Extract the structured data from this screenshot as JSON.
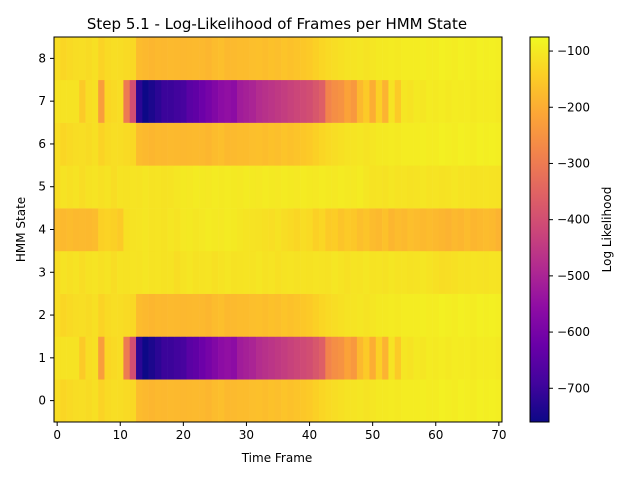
{
  "chart_data": {
    "type": "heatmap",
    "title": "Step 5.1 - Log-Likelihood of Frames per HMM State",
    "xlabel": "Time Frame",
    "ylabel": "HMM State",
    "colorbar_label": "Log Likelihood",
    "colormap": "plasma",
    "x_range": [
      0,
      70
    ],
    "y_states": [
      0,
      1,
      2,
      3,
      4,
      5,
      6,
      7,
      8
    ],
    "x_ticks": [
      0,
      10,
      20,
      30,
      40,
      50,
      60,
      70
    ],
    "y_ticks": [
      0,
      1,
      2,
      3,
      4,
      5,
      6,
      7,
      8
    ],
    "colorbar_ticks": [
      -100,
      -200,
      -300,
      -400,
      -500,
      -600,
      -700
    ],
    "color_range": [
      -760,
      -75
    ],
    "rows": [
      {
        "state": 0,
        "values": [
          -120,
          -130,
          -125,
          -120,
          -118,
          -122,
          -115,
          -135,
          -125,
          -118,
          -120,
          -125,
          -128,
          -175,
          -180,
          -185,
          -180,
          -182,
          -178,
          -180,
          -182,
          -180,
          -178,
          -180,
          -185,
          -175,
          -170,
          -180,
          -178,
          -175,
          -175,
          -170,
          -168,
          -172,
          -165,
          -170,
          -160,
          -165,
          -160,
          -155,
          -150,
          -140,
          -130,
          -125,
          -120,
          -115,
          -110,
          -108,
          -105,
          -110,
          -105,
          -100,
          -100,
          -98,
          -100,
          -95,
          -95,
          -95,
          -92,
          -95,
          -95,
          -90,
          -92,
          -95,
          -90,
          -92,
          -95,
          -90,
          -92,
          -90,
          -92
        ]
      },
      {
        "state": 1,
        "values": [
          -110,
          -110,
          -110,
          -110,
          -150,
          -120,
          -115,
          -230,
          -130,
          -125,
          -120,
          -300,
          -400,
          -720,
          -760,
          -740,
          -720,
          -700,
          -700,
          -690,
          -680,
          -650,
          -640,
          -620,
          -600,
          -580,
          -560,
          -550,
          -560,
          -520,
          -510,
          -500,
          -480,
          -470,
          -460,
          -450,
          -440,
          -430,
          -420,
          -410,
          -400,
          -380,
          -360,
          -280,
          -260,
          -250,
          -220,
          -240,
          -180,
          -150,
          -200,
          -140,
          -190,
          -110,
          -150,
          -105,
          -110,
          -100,
          -105,
          -98,
          -100,
          -95,
          -100,
          -95,
          -98,
          -95,
          -100,
          -95,
          -98,
          -95,
          -100
        ]
      },
      {
        "state": 2,
        "values": [
          -120,
          -130,
          -125,
          -120,
          -118,
          -122,
          -115,
          -135,
          -125,
          -118,
          -120,
          -125,
          -128,
          -175,
          -180,
          -185,
          -180,
          -182,
          -178,
          -180,
          -182,
          -180,
          -178,
          -180,
          -185,
          -175,
          -170,
          -180,
          -178,
          -175,
          -175,
          -170,
          -168,
          -172,
          -165,
          -170,
          -160,
          -165,
          -160,
          -155,
          -150,
          -140,
          -130,
          -125,
          -120,
          -115,
          -110,
          -108,
          -105,
          -110,
          -105,
          -100,
          -100,
          -98,
          -100,
          -95,
          -95,
          -95,
          -92,
          -95,
          -95,
          -90,
          -92,
          -95,
          -90,
          -92,
          -95,
          -90,
          -92,
          -90,
          -92
        ]
      },
      {
        "state": 3,
        "values": [
          -120,
          -110,
          -115,
          -110,
          -120,
          -112,
          -108,
          -115,
          -110,
          -120,
          -110,
          -112,
          -108,
          -110,
          -105,
          -110,
          -108,
          -112,
          -110,
          -120,
          -110,
          -105,
          -112,
          -110,
          -108,
          -115,
          -110,
          -105,
          -112,
          -110,
          -108,
          -110,
          -105,
          -112,
          -108,
          -115,
          -110,
          -108,
          -112,
          -110,
          -112,
          -108,
          -110,
          -112,
          -105,
          -110,
          -115,
          -108,
          -110,
          -105,
          -110,
          -108,
          -112,
          -105,
          -110,
          -108,
          -112,
          -110,
          -105,
          -110,
          -115,
          -120,
          -118,
          -115,
          -110,
          -112,
          -108,
          -110,
          -112,
          -108,
          -110
        ]
      },
      {
        "state": 4,
        "values": [
          -175,
          -180,
          -175,
          -180,
          -178,
          -180,
          -175,
          -140,
          -135,
          -140,
          -150,
          -115,
          -110,
          -108,
          -105,
          -110,
          -108,
          -112,
          -105,
          -110,
          -102,
          -100,
          -105,
          -102,
          -98,
          -100,
          -102,
          -98,
          -100,
          -105,
          -108,
          -110,
          -112,
          -115,
          -118,
          -112,
          -120,
          -125,
          -130,
          -120,
          -125,
          -140,
          -130,
          -150,
          -145,
          -160,
          -150,
          -155,
          -170,
          -160,
          -175,
          -180,
          -165,
          -185,
          -175,
          -180,
          -170,
          -175,
          -180,
          -175,
          -180,
          -185,
          -190,
          -180,
          -185,
          -175,
          -185,
          -180,
          -175,
          -180,
          -190
        ]
      },
      {
        "state": 5,
        "values": [
          -120,
          -110,
          -115,
          -110,
          -120,
          -112,
          -108,
          -115,
          -110,
          -120,
          -110,
          -112,
          -108,
          -110,
          -105,
          -110,
          -108,
          -112,
          -110,
          -105,
          -100,
          -102,
          -98,
          -100,
          -102,
          -98,
          -100,
          -98,
          -100,
          -102,
          -98,
          -100,
          -102,
          -98,
          -100,
          -102,
          -98,
          -100,
          -102,
          -98,
          -100,
          -102,
          -98,
          -100,
          -102,
          -98,
          -100,
          -102,
          -98,
          -105,
          -110,
          -108,
          -112,
          -105,
          -110,
          -108,
          -112,
          -110,
          -105,
          -110,
          -108,
          -112,
          -110,
          -105,
          -110,
          -108,
          -112,
          -110,
          -108,
          -110,
          -112
        ]
      },
      {
        "state": 6,
        "values": [
          -120,
          -130,
          -125,
          -120,
          -118,
          -122,
          -115,
          -135,
          -125,
          -118,
          -120,
          -125,
          -128,
          -175,
          -180,
          -185,
          -180,
          -182,
          -178,
          -180,
          -182,
          -180,
          -178,
          -180,
          -185,
          -175,
          -170,
          -180,
          -178,
          -175,
          -175,
          -170,
          -168,
          -172,
          -165,
          -170,
          -160,
          -165,
          -160,
          -155,
          -150,
          -140,
          -130,
          -125,
          -120,
          -115,
          -110,
          -108,
          -105,
          -110,
          -105,
          -100,
          -100,
          -98,
          -100,
          -95,
          -95,
          -95,
          -92,
          -95,
          -95,
          -90,
          -92,
          -95,
          -90,
          -92,
          -95,
          -90,
          -92,
          -90,
          -92
        ]
      },
      {
        "state": 7,
        "values": [
          -110,
          -110,
          -110,
          -110,
          -150,
          -120,
          -115,
          -230,
          -130,
          -125,
          -120,
          -300,
          -400,
          -720,
          -760,
          -740,
          -720,
          -700,
          -700,
          -690,
          -680,
          -650,
          -640,
          -620,
          -600,
          -580,
          -560,
          -550,
          -560,
          -520,
          -510,
          -500,
          -480,
          -470,
          -460,
          -450,
          -440,
          -430,
          -420,
          -410,
          -400,
          -380,
          -360,
          -280,
          -260,
          -250,
          -220,
          -240,
          -180,
          -150,
          -200,
          -140,
          -190,
          -110,
          -150,
          -105,
          -110,
          -100,
          -105,
          -98,
          -100,
          -95,
          -100,
          -95,
          -98,
          -95,
          -100,
          -95,
          -98,
          -95,
          -100
        ]
      },
      {
        "state": 8,
        "values": [
          -120,
          -130,
          -125,
          -120,
          -118,
          -122,
          -115,
          -135,
          -125,
          -118,
          -120,
          -125,
          -128,
          -175,
          -180,
          -185,
          -180,
          -182,
          -178,
          -180,
          -182,
          -180,
          -178,
          -180,
          -185,
          -175,
          -170,
          -180,
          -178,
          -175,
          -175,
          -170,
          -168,
          -172,
          -165,
          -170,
          -160,
          -165,
          -160,
          -155,
          -150,
          -140,
          -130,
          -125,
          -120,
          -115,
          -110,
          -108,
          -105,
          -110,
          -105,
          -100,
          -100,
          -98,
          -100,
          -95,
          -95,
          -95,
          -92,
          -95,
          -95,
          -90,
          -92,
          -95,
          -90,
          -92,
          -95,
          -90,
          -92,
          -90,
          -92
        ]
      }
    ]
  }
}
